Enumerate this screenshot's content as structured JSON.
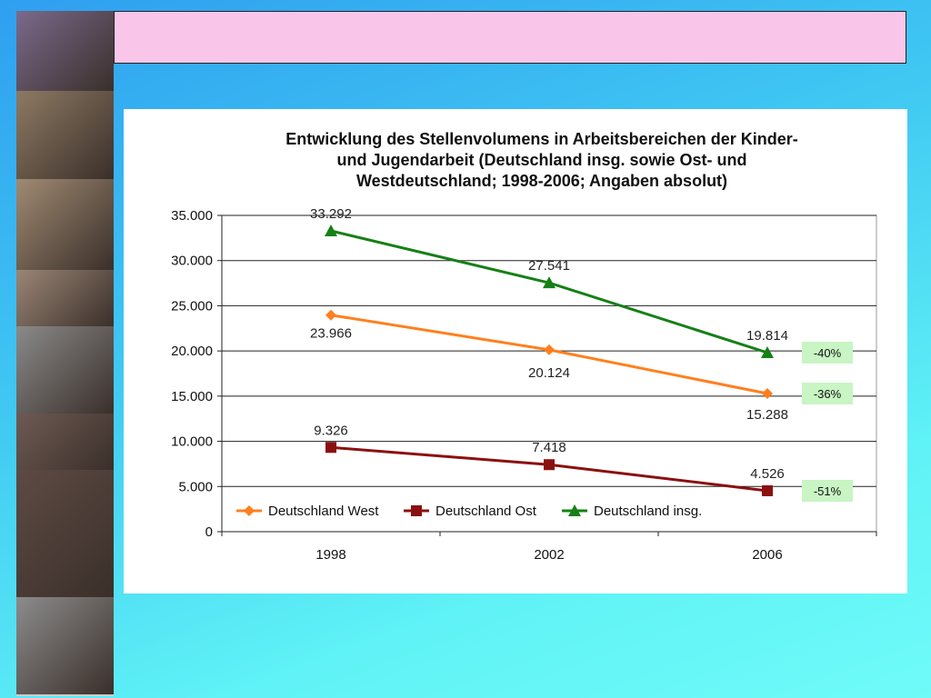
{
  "slide": {
    "banner_text": ""
  },
  "photos": [
    {
      "name": "photo-skaters",
      "color": "#7b6a8c"
    },
    {
      "name": "photo-faces-grid",
      "color": "#8e7a63"
    },
    {
      "name": "photo-girl-phone",
      "color": "#a08a72"
    },
    {
      "name": "photo-boys-heads",
      "color": "#9b8676"
    },
    {
      "name": "photo-girl-bw",
      "color": "#8a8a8a"
    },
    {
      "name": "photo-teens-group",
      "color": "#6f5a54"
    },
    {
      "name": "photo-party",
      "color": "#5e4a44"
    },
    {
      "name": "photo-demonstration",
      "color": "#8c8c8c"
    }
  ],
  "chart_data": {
    "type": "line",
    "title_lines": [
      "Entwicklung des Stellenvolumens in Arbeitsbereichen der Kinder-",
      "und Jugendarbeit (Deutschland insg. sowie Ost- und",
      "Westdeutschland; 1998-2006; Angaben absolut)"
    ],
    "categories": [
      "1998",
      "2002",
      "2006"
    ],
    "ylim": [
      0,
      35000
    ],
    "yticks": [
      0,
      5000,
      10000,
      15000,
      20000,
      25000,
      30000,
      35000
    ],
    "ytick_labels": [
      "0",
      "5.000",
      "10.000",
      "15.000",
      "20.000",
      "25.000",
      "30.000",
      "35.000"
    ],
    "grid": true,
    "legend_position": "bottom-inside",
    "series": [
      {
        "name": "Deutschland West",
        "color": "#ff7f1e",
        "marker": "diamond",
        "values": [
          23966,
          20124,
          15288
        ],
        "labels": [
          "23.966",
          "20.124",
          "15.288"
        ],
        "change": "-36%"
      },
      {
        "name": "Deutschland Ost",
        "color": "#8b1010",
        "marker": "square",
        "values": [
          9326,
          7418,
          4526
        ],
        "labels": [
          "9.326",
          "7.418",
          "4.526"
        ],
        "change": "-51%"
      },
      {
        "name": "Deutschland insg.",
        "color": "#168016",
        "marker": "triangle",
        "values": [
          33292,
          27541,
          19814
        ],
        "labels": [
          "33.292",
          "27.541",
          "19.814"
        ],
        "change": "-40%"
      }
    ]
  }
}
